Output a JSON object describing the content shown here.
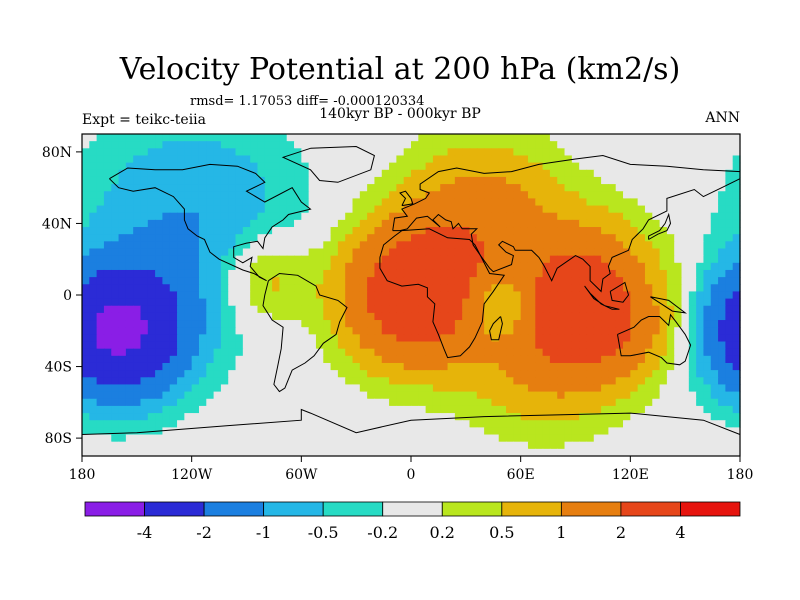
{
  "chart_data": {
    "type": "heatmap",
    "title": "Velocity Potential at 200 hPa (km2/s)",
    "stats_line": "rmsd= 1.17053 diff= -0.000120334",
    "subtitle": "140kyr BP - 000kyr BP",
    "left_label": "Expt = teikc-teiia",
    "right_label": "ANN",
    "x_ticks": [
      "180",
      "120W",
      "60W",
      "0",
      "60E",
      "120E",
      "180"
    ],
    "y_ticks": [
      "80N",
      "40N",
      "0",
      "40S",
      "80S"
    ],
    "x_range": [
      -180,
      180
    ],
    "y_range": [
      -90,
      90
    ],
    "colorbar": {
      "labels": [
        "-4",
        "-2",
        "-1",
        "-0.5",
        "-0.2",
        "0.2",
        "0.5",
        "1",
        "2",
        "4"
      ],
      "colors": [
        "#8a1ee6",
        "#2b2bd6",
        "#1b7fe0",
        "#25b7e6",
        "#27dbc4",
        "#e8e8e8",
        "#b9e61e",
        "#e6b40a",
        "#e67e10",
        "#e6461a",
        "#e6140e"
      ]
    },
    "field_centers": [
      {
        "lon": -160,
        "lat": -20,
        "value": -4.5,
        "sigma": 24
      },
      {
        "lon": 2,
        "lat": 0,
        "value": 3.2,
        "sigma": 26
      },
      {
        "lon": 100,
        "lat": -5,
        "value": 3.3,
        "sigma": 26
      },
      {
        "lon": 50,
        "lat": -5,
        "value": -1.4,
        "sigma": 14
      },
      {
        "lon": 120,
        "lat": 5,
        "value": -0.6,
        "sigma": 16
      },
      {
        "lon": 40,
        "lat": 40,
        "value": 1.4,
        "sigma": 30
      },
      {
        "lon": -80,
        "lat": 10,
        "value": 0.9,
        "sigma": 18
      },
      {
        "lon": 70,
        "lat": -35,
        "value": 0.9,
        "sigma": 28
      },
      {
        "lon": -120,
        "lat": 40,
        "value": -1.0,
        "sigma": 40
      }
    ]
  }
}
